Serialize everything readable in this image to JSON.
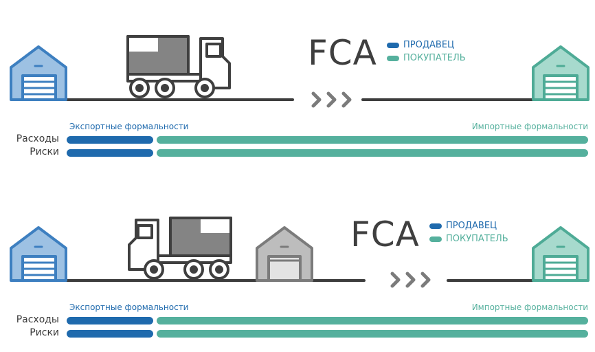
{
  "colors": {
    "seller": "#1f6aad",
    "buyer": "#55b09d",
    "line": "#3d3d3d",
    "warehouse_seller_fill": "#9dc1e3",
    "warehouse_seller_stroke": "#3d7fc0",
    "warehouse_buyer_fill": "#a7dacd",
    "warehouse_buyer_stroke": "#4eab96",
    "truck_stroke": "#3f3f3f",
    "truck_cargo": "#848484",
    "terminal_fill": "#bdbdbd",
    "terminal_stroke": "#7b7b7b"
  },
  "panels": [
    {
      "title": "FCA",
      "legend": {
        "seller": "ПРОДАВЕЦ",
        "buyer": "ПОКУПАТЕЛЬ"
      },
      "export_label": "Экспортные формальности",
      "import_label": "Импортные формальности",
      "rows": [
        {
          "label": "Расходы"
        },
        {
          "label": "Риски"
        }
      ],
      "icons": [
        "warehouse-icon",
        "truck-icon",
        "arrows-icon",
        "warehouse-icon"
      ]
    },
    {
      "title": "FCA",
      "legend": {
        "seller": "ПРОДАВЕЦ",
        "buyer": "ПОКУПАТЕЛЬ"
      },
      "export_label": "Экспортные формальности",
      "import_label": "Импортные формальности",
      "rows": [
        {
          "label": "Расходы"
        },
        {
          "label": "Риски"
        }
      ],
      "icons": [
        "warehouse-icon",
        "truck-icon",
        "terminal-icon",
        "arrows-icon",
        "warehouse-icon"
      ]
    }
  ]
}
